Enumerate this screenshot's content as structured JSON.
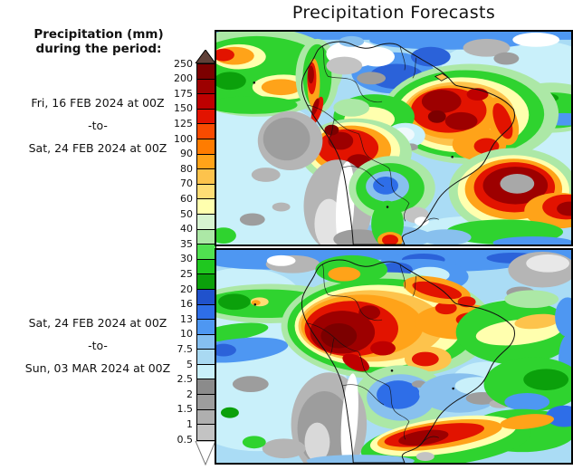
{
  "title": "Precipitation Forecasts",
  "sidebar": {
    "heading_line1": "Precipitation (mm)",
    "heading_line2": "during the period:",
    "period1_from": "Fri, 16 FEB 2024 at 00Z",
    "period1_sep": "-to-",
    "period1_to": "Sat, 24 FEB 2024 at 00Z",
    "period2_from": "Sat, 24 FEB 2024 at 00Z",
    "period2_sep": "-to-",
    "period2_to": "Sun, 03 MAR 2024 at 00Z"
  },
  "colorbar": {
    "unit": "mm",
    "ticks": [
      "250",
      "200",
      "175",
      "150",
      "125",
      "100",
      "90",
      "80",
      "70",
      "60",
      "50",
      "40",
      "35",
      "30",
      "25",
      "20",
      "16",
      "13",
      "10",
      "7.5",
      "5",
      "2.5",
      "2",
      "1.5",
      "1",
      "0.5"
    ],
    "band_colors": [
      "#7c0000",
      "#9d0000",
      "#be0000",
      "#e21300",
      "#f94b00",
      "#ff7c00",
      "#ffa319",
      "#fdc34c",
      "#ffdd75",
      "#ffffae",
      "#d7f4d0",
      "#ace8a6",
      "#50e150",
      "#1fc81f",
      "#0ba00b",
      "#2052cc",
      "#2e6ee8",
      "#4e97f2",
      "#85bff0",
      "#a9d9f2",
      "#c9f0fa",
      "#8b8b8b",
      "#9d9d9d",
      "#afafaf",
      "#c3c3c3"
    ],
    "over_max_color": "#5f4038",
    "under_min_color": "#ffffff"
  },
  "maps": {
    "panel1_alt": "South America precipitation shading for 16-24 FEB 2024",
    "panel2_alt": "South America precipitation shading for 24 FEB - 03 MAR 2024"
  }
}
